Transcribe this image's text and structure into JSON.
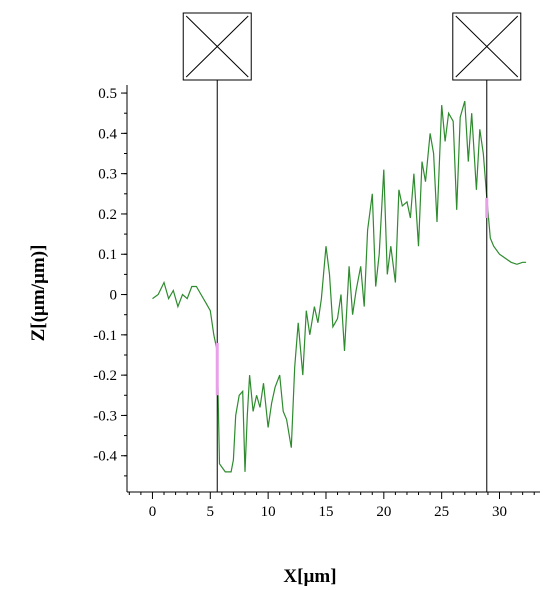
{
  "chart_data": {
    "type": "line",
    "xlabel": "X[µm]",
    "ylabel": "Z[(µm/µm)]",
    "xlim": [
      -2.2,
      33.5
    ],
    "ylim": [
      -0.49,
      0.52
    ],
    "xticks": [
      0,
      5,
      10,
      15,
      20,
      25,
      30
    ],
    "yticks": [
      0.5,
      0.4,
      0.3,
      0.2,
      0.1,
      0,
      -0.1,
      -0.2,
      -0.3,
      -0.4
    ],
    "yticklabels": [
      "0.5",
      "0.4",
      "0.3",
      "0.2",
      "0.1",
      "0",
      "-0.1",
      "-0.2",
      "-0.3",
      "-0.4"
    ],
    "grid": false,
    "colors": {
      "line": "#2e8b2e",
      "highlight": "#e8a0e8",
      "cursor": "#000000"
    },
    "series": [
      {
        "x": [
          0,
          0.5,
          1.0,
          1.4,
          1.8,
          2.2,
          2.6,
          3.0,
          3.4,
          3.8,
          4.2,
          4.6,
          5.0,
          5.3,
          5.6,
          5.8,
          6.3,
          6.8,
          7.0,
          7.2,
          7.5,
          7.8,
          8.0,
          8.2,
          8.4,
          8.7,
          9.0,
          9.3,
          9.6,
          10.0,
          10.3,
          10.6,
          11.0,
          11.3,
          11.6,
          12.0,
          12.3,
          12.6,
          13.0,
          13.3,
          13.6,
          14.0,
          14.3,
          14.6,
          15.0,
          15.3,
          15.6,
          16.0,
          16.3,
          16.6,
          17.0,
          17.3,
          17.6,
          18.0,
          18.3,
          18.6,
          19.0,
          19.3,
          19.6,
          20.0,
          20.3,
          20.6,
          21.0,
          21.3,
          21.6,
          22.0,
          22.3,
          22.6,
          23.0,
          23.3,
          23.6,
          24.0,
          24.3,
          24.6,
          25.0,
          25.3,
          25.6,
          26.0,
          26.3,
          26.6,
          27.0,
          27.3,
          27.6,
          28.0,
          28.3,
          28.6,
          28.9,
          29.2,
          29.5,
          30.0,
          30.5,
          31.0,
          31.5,
          32.0,
          32.3
        ],
        "y": [
          -0.01,
          0.0,
          0.03,
          -0.01,
          0.01,
          -0.03,
          0.0,
          -0.01,
          0.02,
          0.02,
          0.0,
          -0.02,
          -0.04,
          -0.1,
          -0.14,
          -0.42,
          -0.44,
          -0.44,
          -0.41,
          -0.3,
          -0.25,
          -0.24,
          -0.44,
          -0.3,
          -0.2,
          -0.29,
          -0.25,
          -0.28,
          -0.22,
          -0.33,
          -0.27,
          -0.23,
          -0.2,
          -0.29,
          -0.31,
          -0.38,
          -0.18,
          -0.07,
          -0.2,
          -0.04,
          -0.1,
          -0.03,
          -0.07,
          -0.01,
          0.12,
          0.05,
          -0.08,
          -0.06,
          0.0,
          -0.14,
          0.07,
          -0.05,
          0.01,
          0.07,
          -0.03,
          0.16,
          0.25,
          0.02,
          0.1,
          0.31,
          0.05,
          0.12,
          0.03,
          0.26,
          0.22,
          0.23,
          0.19,
          0.3,
          0.12,
          0.33,
          0.28,
          0.4,
          0.35,
          0.18,
          0.47,
          0.38,
          0.45,
          0.43,
          0.21,
          0.44,
          0.48,
          0.33,
          0.45,
          0.26,
          0.41,
          0.35,
          0.24,
          0.14,
          0.12,
          0.1,
          0.09,
          0.08,
          0.075,
          0.08,
          0.08
        ]
      }
    ],
    "cursors": [
      {
        "x": 5.6,
        "highlight_range": [
          -0.25,
          -0.12
        ]
      },
      {
        "x": 28.9,
        "highlight_range": [
          0.19,
          0.24
        ]
      }
    ]
  }
}
